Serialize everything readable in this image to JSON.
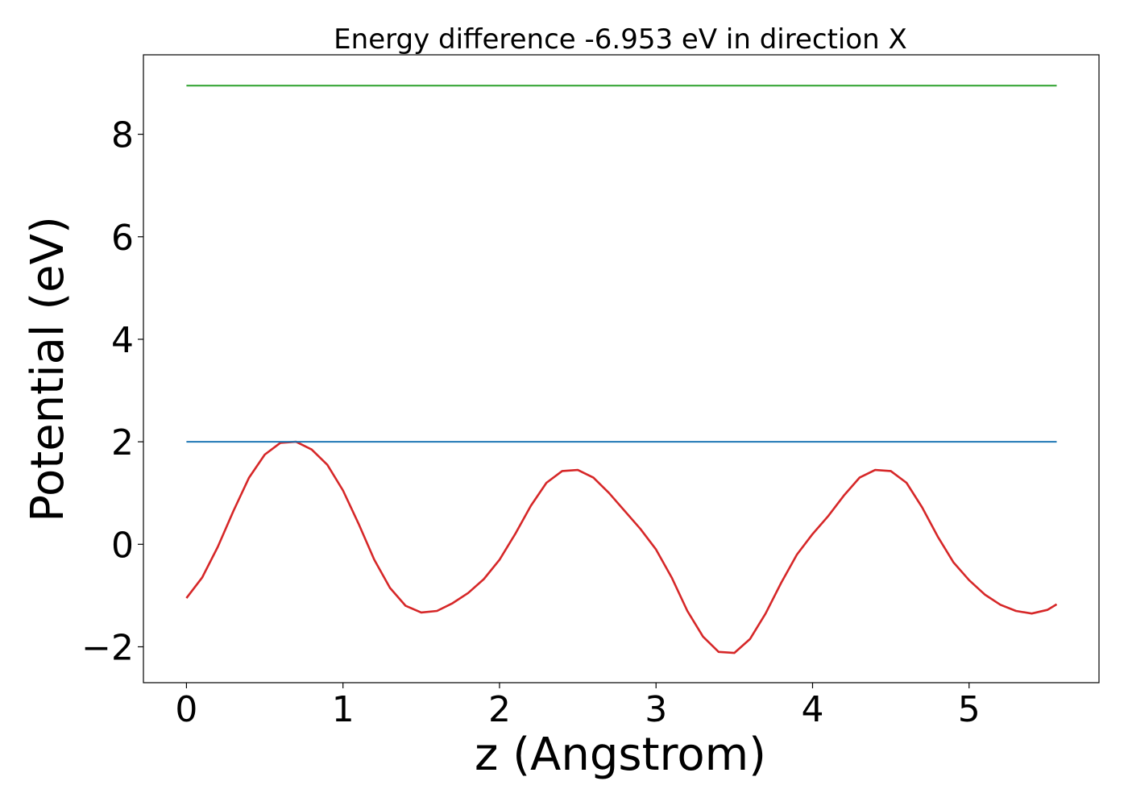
{
  "chart_data": {
    "type": "line",
    "title": "Energy difference -6.953 eV in direction X",
    "xlabel": "z (Angstrom)",
    "ylabel": "Potential (eV)",
    "xlim": [
      -0.275,
      5.83
    ],
    "ylim": [
      -2.7,
      9.55
    ],
    "xticks": [
      {
        "value": 0,
        "label": "0"
      },
      {
        "value": 1,
        "label": "1"
      },
      {
        "value": 2,
        "label": "2"
      },
      {
        "value": 3,
        "label": "3"
      },
      {
        "value": 4,
        "label": "4"
      },
      {
        "value": 5,
        "label": "5"
      }
    ],
    "yticks": [
      {
        "value": -2,
        "label": "−2"
      },
      {
        "value": 0,
        "label": "0"
      },
      {
        "value": 2,
        "label": "2"
      },
      {
        "value": 4,
        "label": "4"
      },
      {
        "value": 6,
        "label": "6"
      },
      {
        "value": 8,
        "label": "8"
      }
    ],
    "grid": false,
    "legend": "none",
    "series": [
      {
        "color": "#d62728",
        "x": [
          0,
          0.1,
          0.2,
          0.3,
          0.4,
          0.5,
          0.6,
          0.7,
          0.8,
          0.9,
          1.0,
          1.1,
          1.2,
          1.3,
          1.4,
          1.5,
          1.6,
          1.7,
          1.8,
          1.9,
          2.0,
          2.1,
          2.2,
          2.3,
          2.4,
          2.5,
          2.6,
          2.7,
          2.8,
          2.9,
          3.0,
          3.1,
          3.2,
          3.3,
          3.4,
          3.5,
          3.6,
          3.7,
          3.8,
          3.9,
          4.0,
          4.1,
          4.2,
          4.3,
          4.4,
          4.5,
          4.6,
          4.7,
          4.8,
          4.9,
          5.0,
          5.1,
          5.2,
          5.3,
          5.4,
          5.5,
          5.56
        ],
        "y": [
          -1.05,
          -0.65,
          -0.05,
          0.65,
          1.3,
          1.75,
          1.98,
          2.0,
          1.85,
          1.55,
          1.05,
          0.4,
          -0.3,
          -0.85,
          -1.2,
          -1.33,
          -1.3,
          -1.15,
          -0.95,
          -0.68,
          -0.3,
          0.2,
          0.75,
          1.2,
          1.43,
          1.45,
          1.3,
          1.0,
          0.65,
          0.3,
          -0.1,
          -0.65,
          -1.3,
          -1.8,
          -2.1,
          -2.12,
          -1.85,
          -1.35,
          -0.75,
          -0.2,
          0.2,
          0.55,
          0.95,
          1.3,
          1.45,
          1.43,
          1.2,
          0.72,
          0.15,
          -0.35,
          -0.7,
          -0.98,
          -1.18,
          -1.3,
          -1.35,
          -1.28,
          -1.17
        ]
      },
      {
        "color": "#1f77b4",
        "x": [
          0,
          5.56
        ],
        "y": [
          2.0,
          2.0
        ]
      },
      {
        "color": "#2ca02c",
        "x": [
          0,
          5.56
        ],
        "y": [
          8.95,
          8.95
        ]
      }
    ]
  }
}
